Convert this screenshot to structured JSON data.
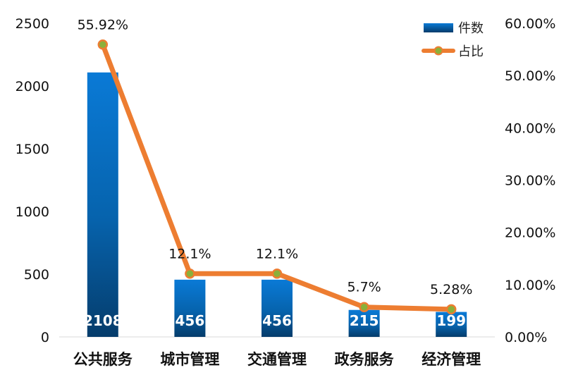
{
  "chart_data": {
    "type": "bar",
    "categories": [
      "公共服务",
      "城市管理",
      "交通管理",
      "政务服务",
      "经济管理"
    ],
    "series": [
      {
        "name": "件数",
        "type": "bar",
        "axis": "left",
        "values": [
          2108,
          456,
          456,
          215,
          199
        ],
        "labels": [
          "2108",
          "456",
          "456",
          "215",
          "199"
        ],
        "color": "#0a74c8"
      },
      {
        "name": "占比",
        "type": "line",
        "axis": "right",
        "values": [
          55.92,
          12.1,
          12.1,
          5.7,
          5.28
        ],
        "labels": [
          "55.92%",
          "12.1%",
          "12.1%",
          "5.7%",
          "5.28%"
        ],
        "color": "#ed7d31",
        "marker_color": "#8bb03a"
      }
    ],
    "y_left": {
      "ylim": [
        0,
        2500
      ],
      "ticks": [
        "0",
        "500",
        "1000",
        "1500",
        "2000",
        "2500"
      ]
    },
    "y_right": {
      "ylim": [
        0,
        60
      ],
      "ticks": [
        "0.00%",
        "10.00%",
        "20.00%",
        "30.00%",
        "40.00%",
        "50.00%",
        "60.00%"
      ]
    },
    "grid": false,
    "legend": {
      "position": "top-right",
      "items": [
        "件数",
        "占比"
      ]
    }
  }
}
